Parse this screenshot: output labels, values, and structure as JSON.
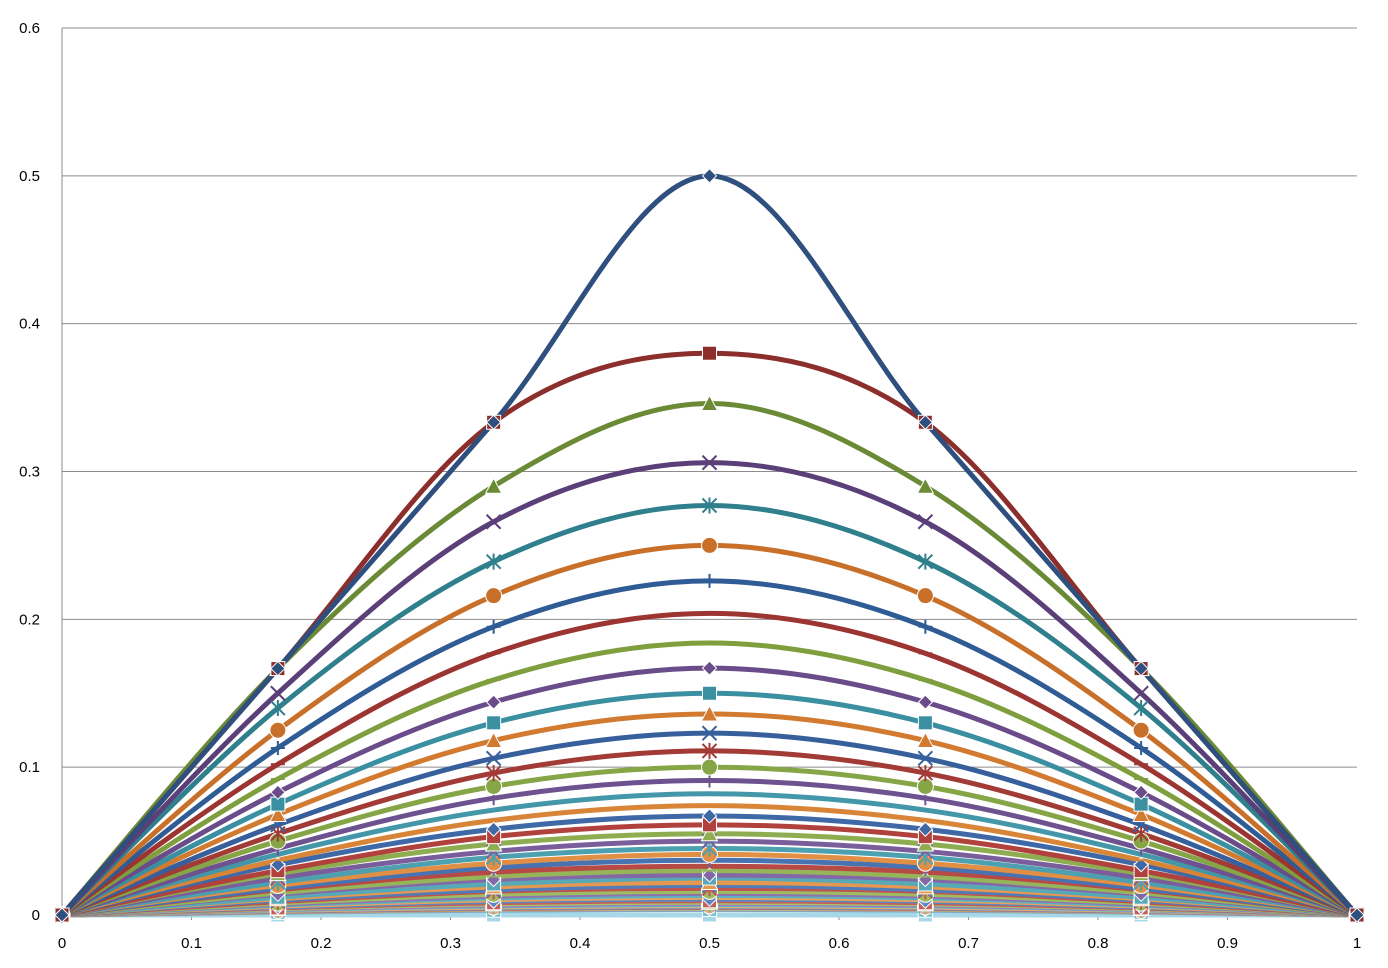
{
  "chart_data": {
    "type": "line",
    "title": "",
    "xlabel": "",
    "ylabel": "",
    "xlim": [
      0,
      1
    ],
    "ylim": [
      0,
      0.6
    ],
    "x_ticks": [
      "0",
      "0.1",
      "0.2",
      "0.3",
      "0.4",
      "0.5",
      "0.6",
      "0.7",
      "0.8",
      "0.9",
      "1"
    ],
    "y_ticks": [
      "0",
      "0.1",
      "0.2",
      "0.3",
      "0.4",
      "0.5",
      "0.6"
    ],
    "grid": "horizontal",
    "legend": "none",
    "x": [
      0,
      0.1667,
      0.3333,
      0.5,
      0.6667,
      0.8333,
      1
    ],
    "series": [
      {
        "color": "#2F4F7F",
        "marker": "diamond",
        "values": [
          0,
          0.1667,
          0.3333,
          0.5,
          0.3333,
          0.1667,
          0
        ]
      },
      {
        "color": "#8B2E2C",
        "marker": "square",
        "values": [
          0,
          0.1667,
          0.3333,
          0.38,
          0.3333,
          0.1667,
          0
        ]
      },
      {
        "color": "#6B8A35",
        "marker": "triangle",
        "values": [
          0,
          0.1667,
          0.29,
          0.346,
          0.29,
          0.1667,
          0
        ]
      },
      {
        "color": "#5B3F78",
        "marker": "x",
        "values": [
          0,
          0.15,
          0.266,
          0.306,
          0.266,
          0.15,
          0
        ]
      },
      {
        "color": "#2F7F8C",
        "marker": "star",
        "values": [
          0,
          0.14,
          0.239,
          0.277,
          0.239,
          0.14,
          0
        ]
      },
      {
        "color": "#C8702A",
        "marker": "circle",
        "values": [
          0,
          0.125,
          0.216,
          0.25,
          0.216,
          0.125,
          0
        ]
      },
      {
        "color": "#2F5C94",
        "marker": "plus",
        "values": [
          0,
          0.113,
          0.195,
          0.226,
          0.195,
          0.113,
          0
        ]
      },
      {
        "color": "#9C3431",
        "marker": "dash",
        "values": [
          0,
          0.102,
          0.177,
          0.204,
          0.177,
          0.102,
          0
        ]
      },
      {
        "color": "#7F9E3D",
        "marker": "dash",
        "values": [
          0,
          0.092,
          0.159,
          0.184,
          0.159,
          0.092,
          0
        ]
      },
      {
        "color": "#6A4C8A",
        "marker": "diamond",
        "values": [
          0,
          0.083,
          0.144,
          0.167,
          0.144,
          0.083,
          0
        ]
      },
      {
        "color": "#3A8FA0",
        "marker": "square",
        "values": [
          0,
          0.075,
          0.13,
          0.15,
          0.13,
          0.075,
          0
        ]
      },
      {
        "color": "#D27A30",
        "marker": "triangle",
        "values": [
          0,
          0.068,
          0.118,
          0.136,
          0.118,
          0.068,
          0
        ]
      },
      {
        "color": "#365F9C",
        "marker": "x",
        "values": [
          0,
          0.061,
          0.106,
          0.123,
          0.106,
          0.061,
          0
        ]
      },
      {
        "color": "#A23A36",
        "marker": "star",
        "values": [
          0,
          0.055,
          0.096,
          0.111,
          0.096,
          0.055,
          0
        ]
      },
      {
        "color": "#86A546",
        "marker": "circle",
        "values": [
          0,
          0.05,
          0.087,
          0.1,
          0.087,
          0.05,
          0
        ]
      },
      {
        "color": "#6E5290",
        "marker": "plus",
        "values": [
          0,
          0.045,
          0.079,
          0.091,
          0.079,
          0.045,
          0
        ]
      },
      {
        "color": "#4397A8",
        "marker": "dash",
        "values": [
          0,
          0.041,
          0.071,
          0.082,
          0.071,
          0.041,
          0
        ]
      },
      {
        "color": "#D98538",
        "marker": "dash",
        "values": [
          0,
          0.037,
          0.064,
          0.074,
          0.064,
          0.037,
          0
        ]
      },
      {
        "color": "#3E68A6",
        "marker": "diamond",
        "values": [
          0,
          0.034,
          0.058,
          0.067,
          0.058,
          0.034,
          0
        ]
      },
      {
        "color": "#B0413C",
        "marker": "square",
        "values": [
          0,
          0.03,
          0.053,
          0.061,
          0.053,
          0.03,
          0
        ]
      },
      {
        "color": "#8EAD50",
        "marker": "triangle",
        "values": [
          0,
          0.028,
          0.048,
          0.055,
          0.048,
          0.028,
          0
        ]
      },
      {
        "color": "#7A5E9C",
        "marker": "x",
        "values": [
          0,
          0.025,
          0.043,
          0.05,
          0.043,
          0.025,
          0
        ]
      },
      {
        "color": "#4DA0B0",
        "marker": "star",
        "values": [
          0,
          0.022,
          0.039,
          0.045,
          0.039,
          0.022,
          0
        ]
      },
      {
        "color": "#E08F45",
        "marker": "circle",
        "values": [
          0,
          0.02,
          0.035,
          0.041,
          0.035,
          0.02,
          0
        ]
      },
      {
        "color": "#4872B0",
        "marker": "plus",
        "values": [
          0,
          0.018,
          0.032,
          0.037,
          0.032,
          0.018,
          0
        ]
      },
      {
        "color": "#B84A45",
        "marker": "dash",
        "values": [
          0,
          0.017,
          0.029,
          0.033,
          0.029,
          0.017,
          0
        ]
      },
      {
        "color": "#96B55A",
        "marker": "dash",
        "values": [
          0,
          0.015,
          0.026,
          0.03,
          0.026,
          0.015,
          0
        ]
      },
      {
        "color": "#8468A6",
        "marker": "diamond",
        "values": [
          0,
          0.014,
          0.024,
          0.027,
          0.024,
          0.014,
          0
        ]
      },
      {
        "color": "#57A9B8",
        "marker": "square",
        "values": [
          0,
          0.012,
          0.021,
          0.025,
          0.021,
          0.012,
          0
        ]
      },
      {
        "color": "#E5984F",
        "marker": "triangle",
        "values": [
          0,
          0.011,
          0.019,
          0.022,
          0.019,
          0.011,
          0
        ]
      },
      {
        "color": "#527CB8",
        "marker": "x",
        "values": [
          0,
          0.01,
          0.017,
          0.02,
          0.017,
          0.01,
          0
        ]
      },
      {
        "color": "#BF544E",
        "marker": "star",
        "values": [
          0,
          0.009,
          0.016,
          0.018,
          0.016,
          0.009,
          0
        ]
      },
      {
        "color": "#9EBD63",
        "marker": "circle",
        "values": [
          0,
          0.008,
          0.014,
          0.016,
          0.014,
          0.008,
          0
        ]
      },
      {
        "color": "#8E72AE",
        "marker": "plus",
        "values": [
          0,
          0.0073,
          0.0127,
          0.0146,
          0.0127,
          0.0073,
          0
        ]
      },
      {
        "color": "#60B1C0",
        "marker": "dash",
        "values": [
          0,
          0.0066,
          0.0114,
          0.0132,
          0.0114,
          0.0066,
          0
        ]
      },
      {
        "color": "#EAA15A",
        "marker": "dash",
        "values": [
          0,
          0.0059,
          0.0103,
          0.0119,
          0.0103,
          0.0059,
          0
        ]
      },
      {
        "color": "#5C86C0",
        "marker": "diamond",
        "values": [
          0,
          0.0053,
          0.0093,
          0.0107,
          0.0093,
          0.0053,
          0
        ]
      },
      {
        "color": "#C55E58",
        "marker": "square",
        "values": [
          0,
          0.0048,
          0.0083,
          0.0096,
          0.0083,
          0.0048,
          0
        ]
      },
      {
        "color": "#A6C46D",
        "marker": "triangle",
        "values": [
          0,
          0.0043,
          0.0075,
          0.0086,
          0.0075,
          0.0043,
          0
        ]
      },
      {
        "color": "#987CB6",
        "marker": "x",
        "values": [
          0,
          0.0039,
          0.0067,
          0.0078,
          0.0067,
          0.0039,
          0
        ]
      },
      {
        "color": "#69B9C8",
        "marker": "star",
        "values": [
          0,
          0.0035,
          0.0061,
          0.007,
          0.0061,
          0.0035,
          0
        ]
      },
      {
        "color": "#EEAA66",
        "marker": "circle",
        "values": [
          0,
          0.0031,
          0.0054,
          0.0063,
          0.0054,
          0.0031,
          0
        ]
      },
      {
        "color": "#6690C8",
        "marker": "plus",
        "values": [
          0,
          0.0028,
          0.0049,
          0.0056,
          0.0049,
          0.0028,
          0
        ]
      },
      {
        "color": "#CB6862",
        "marker": "dash",
        "values": [
          0,
          0.0025,
          0.0044,
          0.0051,
          0.0044,
          0.0025,
          0
        ]
      },
      {
        "color": "#AECC78",
        "marker": "dash",
        "values": [
          0,
          0.0023,
          0.004,
          0.0046,
          0.004,
          0.0023,
          0
        ]
      },
      {
        "color": "#A286BE",
        "marker": "diamond",
        "values": [
          0,
          0.0021,
          0.0036,
          0.0041,
          0.0036,
          0.0021,
          0
        ]
      },
      {
        "color": "#72C1CF",
        "marker": "square",
        "values": [
          0,
          0.0018,
          0.0032,
          0.0037,
          0.0032,
          0.0018,
          0
        ]
      },
      {
        "color": "#A8D8E8",
        "marker": "square",
        "values": [
          0,
          0,
          0,
          0,
          0,
          0,
          0
        ]
      }
    ]
  }
}
